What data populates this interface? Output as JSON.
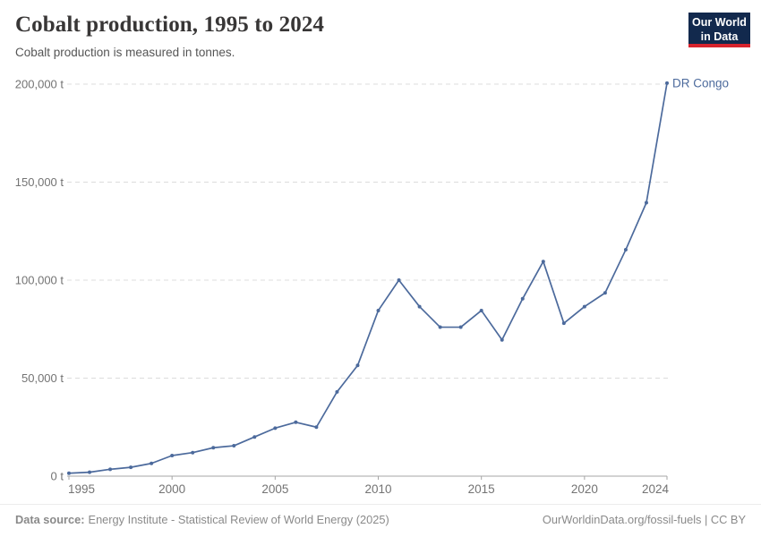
{
  "header": {
    "title": "Cobalt production, 1995 to 2024",
    "subtitle": "Cobalt production is measured in tonnes."
  },
  "logo": {
    "line1": "Our World",
    "line2": "in Data",
    "bg_color": "#12294d",
    "accent_color": "#d7232d"
  },
  "chart_data": {
    "type": "line",
    "title": "Cobalt production, 1995 to 2024",
    "subtitle": "Cobalt production is measured in tonnes.",
    "unit": "t",
    "grid": "horizontal-dashed",
    "legend_position": "end-of-line-label",
    "xlim": [
      1995,
      2024
    ],
    "ylim": [
      0,
      200000
    ],
    "x": [
      1995,
      1996,
      1997,
      1998,
      1999,
      2000,
      2001,
      2002,
      2003,
      2004,
      2005,
      2006,
      2007,
      2008,
      2009,
      2010,
      2011,
      2012,
      2013,
      2014,
      2015,
      2016,
      2017,
      2018,
      2019,
      2020,
      2021,
      2022,
      2023,
      2024
    ],
    "series": [
      {
        "name": "DR Congo",
        "color": "#4C6A9C",
        "values": [
          1500,
          2000,
          3500,
          4500,
          6500,
          10500,
          12000,
          14500,
          15500,
          20000,
          24500,
          27500,
          25000,
          43000,
          56500,
          84500,
          100000,
          86500,
          76000,
          76000,
          84500,
          69500,
          90500,
          109500,
          78000,
          86500,
          93500,
          115500,
          139500,
          200500
        ]
      }
    ],
    "xticks": [
      1995,
      2000,
      2005,
      2010,
      2015,
      2020,
      2024
    ],
    "yticks": [
      {
        "value": 0,
        "label": "0 t"
      },
      {
        "value": 50000,
        "label": "50,000 t"
      },
      {
        "value": 100000,
        "label": "100,000 t"
      },
      {
        "value": 150000,
        "label": "150,000 t"
      },
      {
        "value": 200000,
        "label": "200,000 t"
      }
    ]
  },
  "footer": {
    "source_label": "Data source:",
    "source_text": "Energy Institute - Statistical Review of World Energy (2025)",
    "link_text": "OurWorldinData.org/fossil-fuels | CC BY"
  },
  "colors": {
    "line": "#4C6A9C",
    "title_text": "#383636",
    "subtitle_text": "#555555",
    "tick_text": "#737373",
    "gridline": "#dcdcdc",
    "axis_line": "#a5a5a5",
    "footer_text": "#8a8a8a"
  }
}
